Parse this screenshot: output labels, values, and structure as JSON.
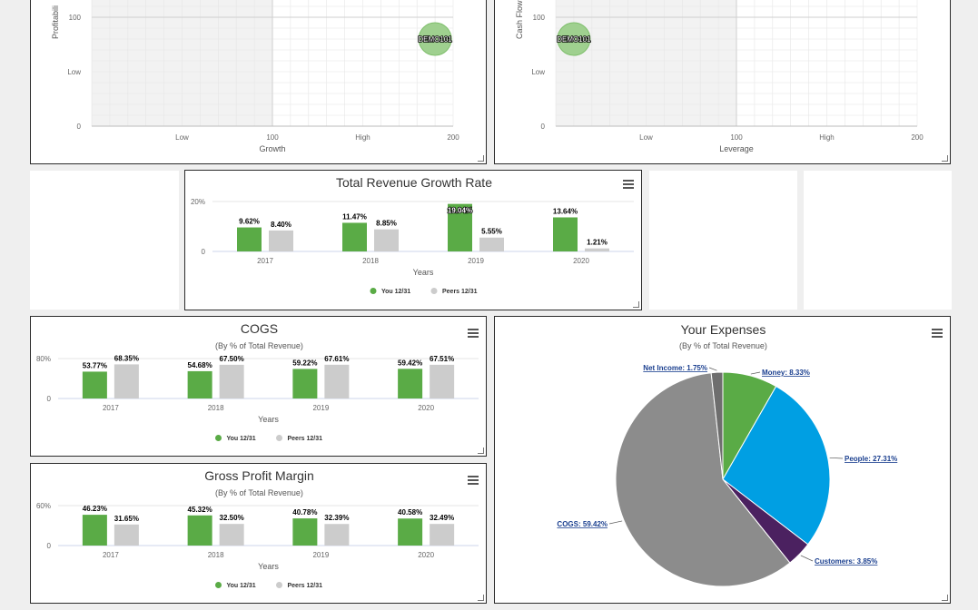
{
  "colors": {
    "you": "#5aab46",
    "peers": "#cccccc",
    "quadrant": "#f2f2f2",
    "grid": "#e6e6e6",
    "bubble": "#9fd08f"
  },
  "scatters": [
    {
      "ylabel_clip": "Profitabili",
      "xlabel": "Growth",
      "xticks": [
        "Low",
        "100",
        "High",
        "200"
      ],
      "yticks": [
        "100",
        "Low",
        "0"
      ],
      "bubble_label": "DEMO101",
      "point": {
        "x": 190,
        "y": 80
      }
    },
    {
      "ylabel_clip": "Cash Flow",
      "xlabel": "Leverage",
      "xticks": [
        "Low",
        "100",
        "High",
        "200"
      ],
      "yticks": [
        "100",
        "Low",
        "0"
      ],
      "bubble_label": "DEMO101",
      "point": {
        "x": 10,
        "y": 80
      }
    }
  ],
  "legend": {
    "you": "You 12/31",
    "peers": "Peers 12/31"
  },
  "menu_icon": "hamburger-menu-icon",
  "chart_data": [
    {
      "type": "bar",
      "title": "Total Revenue Growth Rate",
      "subtitle": "",
      "xlabel": "Years",
      "yticks": [
        "20%",
        "0"
      ],
      "ylim": [
        0,
        20
      ],
      "categories": [
        "2017",
        "2018",
        "2019",
        "2020"
      ],
      "series": [
        {
          "name": "You 12/31",
          "values": [
            9.62,
            11.47,
            19.04,
            13.64
          ],
          "labels": [
            "9.62%",
            "11.47%",
            "19.04%",
            "13.64%"
          ]
        },
        {
          "name": "Peers 12/31",
          "values": [
            8.4,
            8.85,
            5.55,
            1.21
          ],
          "labels": [
            "8.40%",
            "8.85%",
            "5.55%",
            "1.21%"
          ]
        }
      ]
    },
    {
      "type": "bar",
      "title": "COGS",
      "subtitle": "(By % of Total Revenue)",
      "xlabel": "Years",
      "yticks": [
        "80%",
        "0"
      ],
      "ylim": [
        0,
        80
      ],
      "categories": [
        "2017",
        "2018",
        "2019",
        "2020"
      ],
      "series": [
        {
          "name": "You 12/31",
          "values": [
            53.77,
            54.68,
            59.22,
            59.42
          ],
          "labels": [
            "53.77%",
            "54.68%",
            "59.22%",
            "59.42%"
          ]
        },
        {
          "name": "Peers 12/31",
          "values": [
            68.35,
            67.5,
            67.61,
            67.51
          ],
          "labels": [
            "68.35%",
            "67.50%",
            "67.61%",
            "67.51%"
          ]
        }
      ]
    },
    {
      "type": "bar",
      "title": "Gross Profit Margin",
      "subtitle": "(By % of Total Revenue)",
      "xlabel": "Years",
      "yticks": [
        "60%",
        "0"
      ],
      "ylim": [
        0,
        60
      ],
      "categories": [
        "2017",
        "2018",
        "2019",
        "2020"
      ],
      "series": [
        {
          "name": "You 12/31",
          "values": [
            46.23,
            45.32,
            40.78,
            40.58
          ],
          "labels": [
            "46.23%",
            "45.32%",
            "40.78%",
            "40.58%"
          ]
        },
        {
          "name": "Peers 12/31",
          "values": [
            31.65,
            32.5,
            32.39,
            32.49
          ],
          "labels": [
            "31.65%",
            "32.50%",
            "32.39%",
            "32.49%"
          ]
        }
      ]
    },
    {
      "type": "pie",
      "title": "Your Expenses",
      "subtitle": "(By % of Total Revenue)",
      "slices": [
        {
          "label": "Money: 8.33%",
          "value": 8.33,
          "color": "#5aab46"
        },
        {
          "label": "People: 27.31%",
          "value": 27.31,
          "color": "#009fe3"
        },
        {
          "label": "Customers: 3.85%",
          "value": 3.85,
          "color": "#4b2160"
        },
        {
          "label": "COGS: 59.42%",
          "value": 59.42,
          "color": "#8c8c8c"
        },
        {
          "label": "Net Income: 1.75%",
          "value": 1.75,
          "color": "#6e6e6e"
        }
      ]
    }
  ]
}
